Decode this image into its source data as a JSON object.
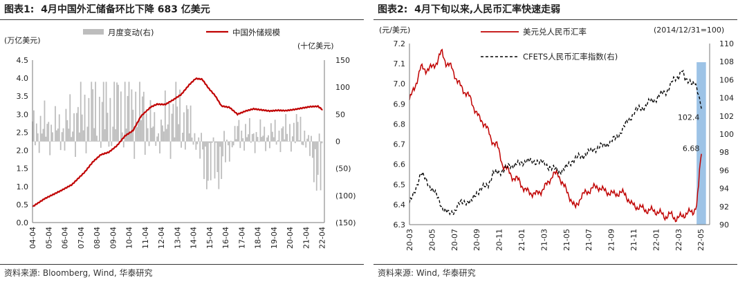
{
  "chart_data": [
    {
      "type": "bar+line",
      "title_prefix": "图表1:",
      "title": "4月中国外汇储备环比下降 683 亿美元",
      "y_left_unit": "(万亿美元)",
      "y_right_unit": "(十亿美元)",
      "ylim_left": [
        0.0,
        4.5
      ],
      "ylim_right": [
        -150,
        150
      ],
      "y_left_ticks": [
        "4.5",
        "4.0",
        "3.5",
        "3.0",
        "2.5",
        "2.0",
        "1.5",
        "1.0",
        "0.5",
        "0.0"
      ],
      "y_right_ticks": [
        "150",
        "100",
        "50",
        "0",
        "(50)",
        "(100)",
        "(150)"
      ],
      "x_ticks": [
        "04-04",
        "05-04",
        "06-04",
        "07-04",
        "08-04",
        "09-04",
        "10-04",
        "11-04",
        "12-04",
        "13-04",
        "14-04",
        "15-04",
        "16-04",
        "17-04",
        "18-04",
        "19-04",
        "20-04",
        "21-04",
        "22-04"
      ],
      "legend_position": "top",
      "series": [
        {
          "name": "月度变动(右)",
          "kind": "bar",
          "axis": "right",
          "color": "#bdbdbd",
          "note_monthly": true,
          "anchors_year": [
            2004,
            2005,
            2006,
            2007,
            2008,
            2009,
            2010,
            2011,
            2012,
            2013,
            2014,
            2015,
            2016,
            2017,
            2018,
            2019,
            2020,
            2021,
            2022.3
          ],
          "anchors_value": [
            20,
            25,
            20,
            40,
            55,
            50,
            60,
            60,
            10,
            55,
            30,
            -40,
            -35,
            15,
            10,
            10,
            15,
            20,
            -68
          ]
        },
        {
          "name": "中国外储规模",
          "kind": "line",
          "axis": "left",
          "color": "#c00000",
          "x": [
            2004.25,
            2005,
            2006,
            2006.7,
            2007.5,
            2008,
            2008.5,
            2009,
            2009.5,
            2010,
            2010.5,
            2011,
            2011.6,
            2012,
            2012.5,
            2013,
            2013.5,
            2014,
            2014.4,
            2014.8,
            2015.2,
            2015.6,
            2016,
            2016.5,
            2017,
            2017.5,
            2018,
            2018.5,
            2019,
            2019.5,
            2020,
            2020.5,
            2021,
            2021.5,
            2022,
            2022.3
          ],
          "y": [
            0.44,
            0.66,
            0.88,
            1.05,
            1.4,
            1.68,
            1.88,
            1.95,
            2.13,
            2.4,
            2.55,
            2.95,
            3.2,
            3.28,
            3.27,
            3.4,
            3.55,
            3.82,
            3.99,
            3.97,
            3.72,
            3.52,
            3.23,
            3.19,
            3.0,
            3.09,
            3.15,
            3.12,
            3.09,
            3.11,
            3.1,
            3.13,
            3.17,
            3.21,
            3.22,
            3.12
          ]
        }
      ]
    },
    {
      "type": "line",
      "title_prefix": "图表2:",
      "title": "4月下旬以来,人民币汇率快速走弱",
      "y_left_unit": "(元/美元)",
      "y_right_unit": "(2014/12/31=100)",
      "ylim_left": [
        6.3,
        7.2
      ],
      "ylim_right": [
        90,
        110
      ],
      "y_left_ticks": [
        "7.2",
        "7.1",
        "7.0",
        "6.9",
        "6.8",
        "6.7",
        "6.6",
        "6.5",
        "6.4",
        "6.3"
      ],
      "y_right_ticks": [
        "110",
        "108",
        "106",
        "104",
        "102",
        "100",
        "98",
        "96",
        "94",
        "92",
        "90"
      ],
      "x_ticks": [
        "20-03",
        "20-05",
        "20-07",
        "20-09",
        "20-11",
        "21-01",
        "21-03",
        "21-05",
        "21-07",
        "21-09",
        "21-11",
        "22-01",
        "22-03",
        "22-05"
      ],
      "legend_position": "top",
      "shaded_region": [
        "2022-04-20",
        "2022-05-15"
      ],
      "shade_color": "#9dc3e6",
      "annotations": [
        {
          "text": "102.4",
          "series": "CFETS人民币汇率指数(右)"
        },
        {
          "text": "6.68",
          "series": "美元兑人民币汇率",
          "color": "#c00000"
        }
      ],
      "series": [
        {
          "name": "美元兑人民币汇率",
          "axis": "left",
          "color": "#c00000",
          "dash": "solid",
          "x": [
            "2020-03-01",
            "2020-03-15",
            "2020-04-01",
            "2020-04-15",
            "2020-05-01",
            "2020-05-15",
            "2020-05-28",
            "2020-06-10",
            "2020-06-25",
            "2020-07-10",
            "2020-07-25",
            "2020-08-10",
            "2020-08-25",
            "2020-09-10",
            "2020-09-25",
            "2020-10-10",
            "2020-10-25",
            "2020-11-10",
            "2020-11-25",
            "2020-12-10",
            "2020-12-25",
            "2021-01-10",
            "2021-01-25",
            "2021-02-10",
            "2021-02-25",
            "2021-03-10",
            "2021-03-25",
            "2021-04-10",
            "2021-04-25",
            "2021-05-10",
            "2021-05-25",
            "2021-06-10",
            "2021-06-25",
            "2021-07-10",
            "2021-07-25",
            "2021-08-10",
            "2021-08-25",
            "2021-09-10",
            "2021-09-25",
            "2021-10-10",
            "2021-10-25",
            "2021-11-10",
            "2021-11-25",
            "2021-12-10",
            "2021-12-25",
            "2022-01-10",
            "2022-01-25",
            "2022-02-10",
            "2022-02-25",
            "2022-03-10",
            "2022-03-25",
            "2022-04-10",
            "2022-04-20",
            "2022-04-25",
            "2022-04-29",
            "2022-05-05"
          ],
          "y": [
            6.92,
            6.98,
            7.08,
            7.07,
            7.08,
            7.11,
            7.16,
            7.1,
            7.08,
            7.01,
            6.97,
            6.94,
            6.88,
            6.82,
            6.8,
            6.72,
            6.7,
            6.6,
            6.57,
            6.53,
            6.52,
            6.47,
            6.46,
            6.45,
            6.47,
            6.5,
            6.55,
            6.55,
            6.49,
            6.44,
            6.38,
            6.44,
            6.46,
            6.48,
            6.49,
            6.47,
            6.46,
            6.45,
            6.46,
            6.45,
            6.4,
            6.39,
            6.38,
            6.37,
            6.37,
            6.36,
            6.34,
            6.35,
            6.33,
            6.34,
            6.36,
            6.36,
            6.4,
            6.48,
            6.6,
            6.68
          ]
        },
        {
          "name": "CFETS人民币汇率指数(右)",
          "axis": "right",
          "color": "#000000",
          "dash": "dashed",
          "x": [
            "2020-03-01",
            "2020-03-15",
            "2020-04-01",
            "2020-04-15",
            "2020-05-01",
            "2020-05-15",
            "2020-06-01",
            "2020-06-15",
            "2020-07-01",
            "2020-07-15",
            "2020-08-01",
            "2020-08-15",
            "2020-09-01",
            "2020-09-15",
            "2020-10-01",
            "2020-10-15",
            "2020-11-01",
            "2020-11-15",
            "2020-12-01",
            "2020-12-15",
            "2021-01-01",
            "2021-01-15",
            "2021-02-01",
            "2021-02-15",
            "2021-03-01",
            "2021-03-15",
            "2021-04-01",
            "2021-04-15",
            "2021-05-01",
            "2021-05-15",
            "2021-06-01",
            "2021-06-15",
            "2021-07-01",
            "2021-07-15",
            "2021-08-01",
            "2021-08-15",
            "2021-09-01",
            "2021-09-15",
            "2021-10-01",
            "2021-10-15",
            "2021-11-01",
            "2021-11-15",
            "2021-12-01",
            "2021-12-15",
            "2022-01-01",
            "2022-01-15",
            "2022-02-01",
            "2022-02-15",
            "2022-03-01",
            "2022-03-10",
            "2022-03-20",
            "2022-04-01",
            "2022-04-15",
            "2022-04-25",
            "2022-05-05"
          ],
          "y": [
            92.4,
            93.5,
            95.8,
            94.9,
            94.0,
            93.1,
            91.8,
            91.2,
            91.5,
            92.3,
            92.6,
            92.4,
            93.6,
            94.0,
            94.4,
            95.6,
            95.8,
            96.1,
            96.5,
            96.7,
            96.7,
            97.2,
            96.8,
            97.1,
            96.7,
            96.4,
            96.1,
            95.9,
            96.3,
            97.0,
            97.4,
            97.6,
            98.0,
            98.3,
            98.6,
            98.8,
            99.2,
            99.6,
            100.5,
            101.4,
            102.3,
            102.8,
            103.0,
            103.6,
            103.9,
            104.4,
            104.8,
            105.8,
            106.4,
            107.2,
            105.8,
            106.0,
            105.5,
            104.3,
            102.4
          ]
        }
      ]
    }
  ],
  "sources": [
    "资料来源: Bloomberg, Wind, 华泰研究",
    "资料来源: Wind, 华泰研究"
  ]
}
